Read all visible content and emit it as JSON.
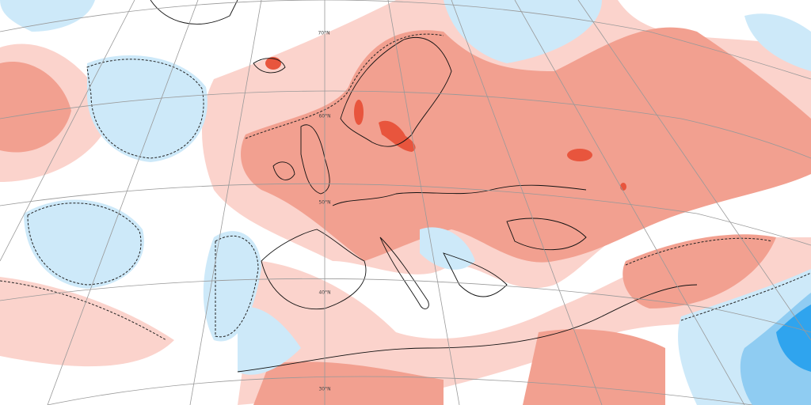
{
  "graticule_labels": [
    "70°N",
    "60°N",
    "50°N",
    "40°N",
    "30°N"
  ]
}
